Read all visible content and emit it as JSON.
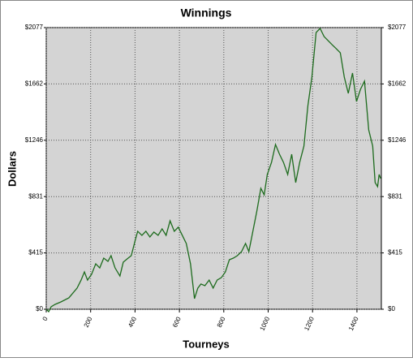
{
  "chart_data": {
    "type": "line",
    "title": "Winnings",
    "xlabel": "Tourneys",
    "ylabel": "Dollars",
    "x": [
      0,
      11,
      22,
      40,
      66,
      102,
      139,
      157,
      172,
      186,
      204,
      223,
      241,
      259,
      278,
      292,
      310,
      332,
      347,
      369,
      383,
      402,
      412,
      431,
      449,
      467,
      485,
      504,
      522,
      540,
      558,
      577,
      595,
      613,
      631,
      650,
      668,
      683,
      697,
      715,
      734,
      752,
      770,
      789,
      807,
      825,
      843,
      861,
      880,
      898,
      913,
      931,
      949,
      967,
      982,
      996,
      1015,
      1033,
      1051,
      1069,
      1088,
      1106,
      1124,
      1142,
      1161,
      1179,
      1197,
      1216,
      1234,
      1252,
      1270,
      1288,
      1307,
      1325,
      1343,
      1361,
      1380,
      1398,
      1416,
      1434,
      1453,
      1471,
      1482,
      1493,
      1500,
      1507
    ],
    "series": [
      {
        "name": "Winnings",
        "color": "#1d6b1d",
        "values": [
          0,
          -18,
          18,
          36,
          54,
          84,
          156,
          215,
          275,
          215,
          257,
          335,
          305,
          377,
          353,
          395,
          305,
          245,
          347,
          377,
          395,
          515,
          575,
          545,
          575,
          533,
          569,
          545,
          593,
          545,
          652,
          575,
          605,
          545,
          485,
          335,
          78,
          156,
          186,
          174,
          215,
          156,
          215,
          233,
          275,
          365,
          377,
          395,
          425,
          485,
          425,
          575,
          724,
          892,
          844,
          994,
          1083,
          1215,
          1143,
          1083,
          994,
          1143,
          934,
          1083,
          1203,
          1502,
          1712,
          2041,
          2071,
          2011,
          1981,
          1951,
          1921,
          1891,
          1712,
          1592,
          1742,
          1532,
          1622,
          1682,
          1323,
          1203,
          934,
          904,
          994,
          964
        ]
      }
    ],
    "xlim": [
      0,
      1510
    ],
    "ylim": [
      0,
      2077
    ],
    "xticks": [
      0,
      200,
      400,
      600,
      800,
      1000,
      1200,
      1400
    ],
    "yticks": [
      {
        "value": 0,
        "label": "$0"
      },
      {
        "value": 415.4,
        "label": "$415"
      },
      {
        "value": 830.8,
        "label": "$831"
      },
      {
        "value": 1246.2,
        "label": "$1246"
      },
      {
        "value": 1661.6,
        "label": "$1662"
      },
      {
        "value": 2077,
        "label": "$2077"
      }
    ],
    "grid": true
  }
}
